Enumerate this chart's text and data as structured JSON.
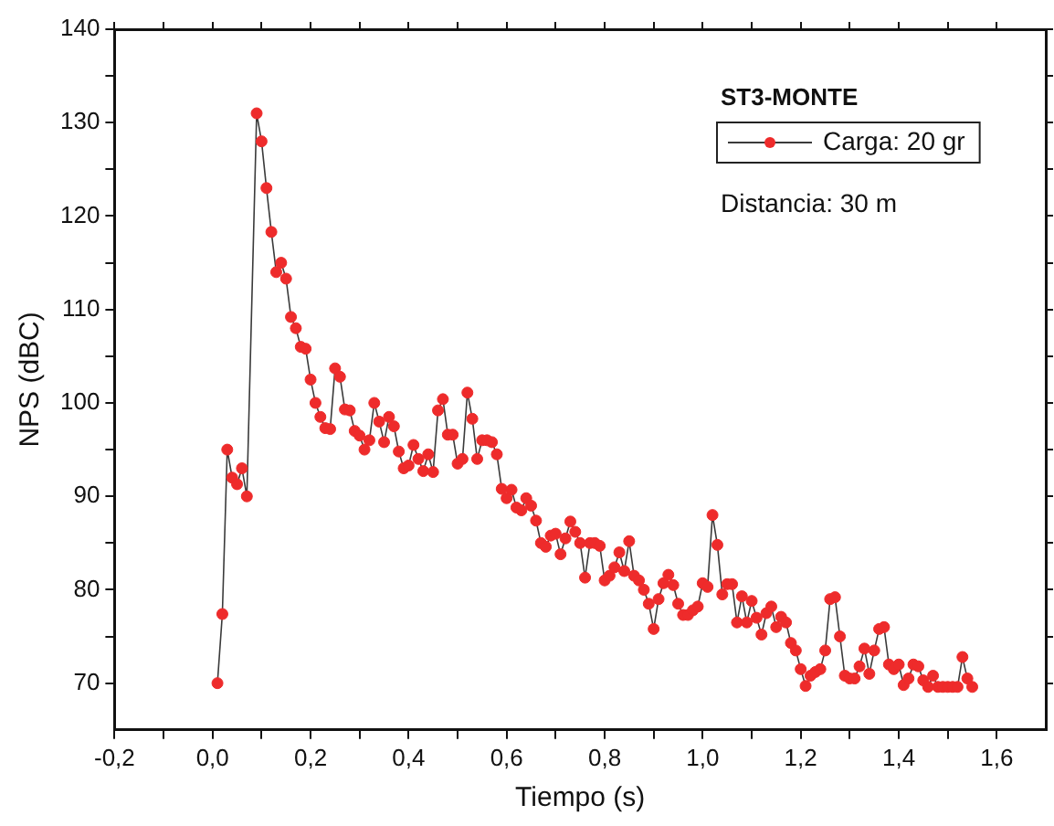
{
  "chart_data": {
    "type": "line",
    "xlabel": "Tiempo (s)",
    "ylabel": "NPS (dBC)",
    "legend_title": "ST3-MONTE",
    "annotations": [
      "Distancia: 30 m"
    ],
    "legend": "top right",
    "marker": "circle",
    "line_style": "solid",
    "grid": false,
    "xlim": [
      -0.2,
      1.7
    ],
    "ylim": [
      65,
      140
    ],
    "xticks": [
      {
        "value": -0.2,
        "label": "-0,2"
      },
      {
        "value": -0.1,
        "label": null
      },
      {
        "value": 0,
        "label": "0,0"
      },
      {
        "value": 0.1,
        "label": null
      },
      {
        "value": 0.2,
        "label": "0,2"
      },
      {
        "value": 0.3,
        "label": null
      },
      {
        "value": 0.4,
        "label": "0,4"
      },
      {
        "value": 0.5,
        "label": null
      },
      {
        "value": 0.6,
        "label": "0,6"
      },
      {
        "value": 0.7,
        "label": null
      },
      {
        "value": 0.8,
        "label": "0,8"
      },
      {
        "value": 0.9,
        "label": null
      },
      {
        "value": 1.0,
        "label": "1,0"
      },
      {
        "value": 1.1,
        "label": null
      },
      {
        "value": 1.2,
        "label": "1,2"
      },
      {
        "value": 1.3,
        "label": null
      },
      {
        "value": 1.4,
        "label": "1,4"
      },
      {
        "value": 1.5,
        "label": null
      },
      {
        "value": 1.6,
        "label": "1,6"
      }
    ],
    "yticks": [
      70,
      {
        "value": 75,
        "label": null
      },
      80,
      {
        "value": 85,
        "label": null
      },
      90,
      {
        "value": 95,
        "label": null
      },
      100,
      {
        "value": 105,
        "label": null
      },
      110,
      {
        "value": 115,
        "label": null
      },
      120,
      {
        "value": 125,
        "label": null
      },
      130,
      {
        "value": 135,
        "label": null
      },
      140
    ],
    "series": [
      {
        "name": "Carga: 20 gr",
        "color": "#ee2b2b",
        "x": [
          0.01,
          0.02,
          0.03,
          0.04,
          0.05,
          0.06,
          0.07,
          0.09,
          0.1,
          0.11,
          0.12,
          0.13,
          0.14,
          0.15,
          0.16,
          0.17,
          0.18,
          0.19,
          0.2,
          0.21,
          0.22,
          0.23,
          0.24,
          0.25,
          0.26,
          0.27,
          0.28,
          0.29,
          0.3,
          0.31,
          0.32,
          0.33,
          0.34,
          0.35,
          0.36,
          0.37,
          0.38,
          0.39,
          0.4,
          0.41,
          0.42,
          0.43,
          0.44,
          0.45,
          0.46,
          0.47,
          0.48,
          0.49,
          0.5,
          0.51,
          0.52,
          0.53,
          0.54,
          0.55,
          0.56,
          0.57,
          0.58,
          0.59,
          0.6,
          0.61,
          0.62,
          0.63,
          0.64,
          0.65,
          0.66,
          0.67,
          0.68,
          0.69,
          0.7,
          0.71,
          0.72,
          0.73,
          0.74,
          0.75,
          0.76,
          0.77,
          0.78,
          0.79,
          0.8,
          0.81,
          0.82,
          0.83,
          0.84,
          0.85,
          0.86,
          0.87,
          0.88,
          0.89,
          0.9,
          0.91,
          0.92,
          0.93,
          0.94,
          0.95,
          0.96,
          0.97,
          0.98,
          0.99,
          1.0,
          1.01,
          1.02,
          1.03,
          1.04,
          1.05,
          1.06,
          1.07,
          1.08,
          1.09,
          1.1,
          1.11,
          1.12,
          1.13,
          1.14,
          1.15,
          1.16,
          1.17,
          1.18,
          1.19,
          1.2,
          1.21,
          1.22,
          1.23,
          1.24,
          1.25,
          1.26,
          1.27,
          1.28,
          1.29,
          1.3,
          1.31,
          1.32,
          1.33,
          1.34,
          1.35,
          1.36,
          1.37,
          1.38,
          1.39,
          1.4,
          1.41,
          1.42,
          1.43,
          1.44,
          1.45,
          1.46,
          1.47,
          1.48,
          1.49,
          1.5,
          1.51,
          1.52,
          1.53,
          1.54,
          1.55
        ],
        "values": [
          70,
          77.4,
          95,
          92,
          91.3,
          93,
          90,
          131,
          128,
          123,
          118.3,
          114,
          115,
          113.3,
          109.2,
          108,
          106,
          105.8,
          102.5,
          100,
          98.5,
          97.3,
          97.2,
          103.7,
          102.8,
          99.3,
          99.2,
          97,
          96.5,
          95,
          96,
          100,
          98,
          95.8,
          98.5,
          97.5,
          94.8,
          93,
          93.3,
          95.5,
          94,
          92.7,
          94.5,
          92.6,
          99.2,
          100.4,
          96.6,
          96.6,
          93.5,
          94,
          101.1,
          98.3,
          94,
          96,
          96,
          95.8,
          94.5,
          90.8,
          89.8,
          90.7,
          88.8,
          88.5,
          89.8,
          89,
          87.4,
          85,
          84.6,
          85.8,
          86,
          83.8,
          85.5,
          87.3,
          86.2,
          85,
          81.3,
          85,
          85,
          84.7,
          81,
          81.5,
          82.4,
          84,
          82,
          85.2,
          81.5,
          81,
          80,
          78.5,
          75.8,
          79,
          80.7,
          81.6,
          80.5,
          78.5,
          77.3,
          77.3,
          77.8,
          78.2,
          80.7,
          80.3,
          88,
          84.8,
          79.5,
          80.6,
          80.6,
          76.5,
          79.3,
          76.5,
          78.8,
          77,
          75.2,
          77.5,
          78.2,
          76,
          77.1,
          76.5,
          74.3,
          73.5,
          71.5,
          69.7,
          70.8,
          71.2,
          71.5,
          73.5,
          79,
          79.2,
          75,
          70.8,
          70.5,
          70.5,
          71.8,
          73.7,
          71,
          73.5,
          75.8,
          76,
          72,
          71.5,
          72,
          69.8,
          70.5,
          72,
          71.8,
          70.3,
          69.6,
          70.8,
          69.6,
          69.6,
          69.6,
          69.6,
          69.6,
          72.8,
          70.5,
          69.6
        ]
      }
    ]
  }
}
